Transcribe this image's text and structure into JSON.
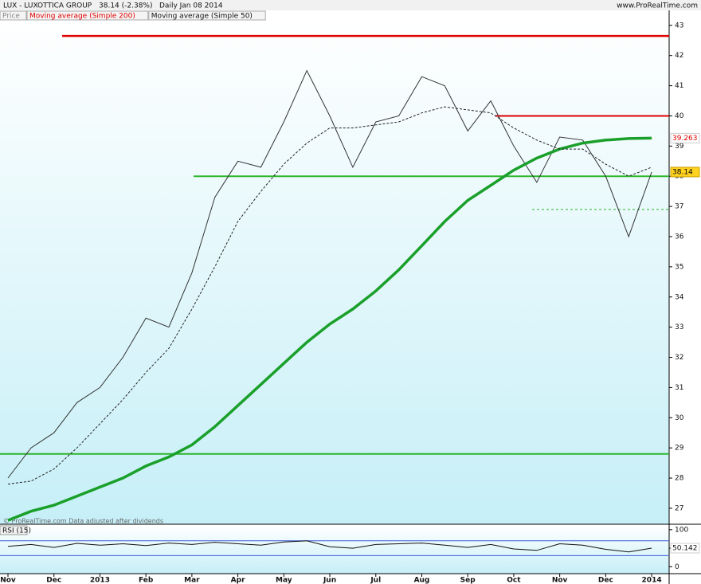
{
  "chart_data": [
    {
      "type": "line",
      "title": "LUX - LUXOTTICA GROUP",
      "subtitle": "38.14 (-2.38%)",
      "period": "Daily  Jan 08 2014",
      "source": "www.ProRealTime.com",
      "note": "© ProRealTime.com Data adjusted after dividends",
      "categories": [
        "Nov",
        null,
        "Dec",
        null,
        "2013",
        null,
        "Feb",
        null,
        "Mar",
        null,
        "Apr",
        null,
        "May",
        null,
        "Jun",
        null,
        "Jul",
        null,
        "Aug",
        null,
        "Sep",
        null,
        "Oct",
        null,
        "Nov",
        null,
        "Dec",
        null,
        "2014"
      ],
      "series": [
        {
          "name": "Price",
          "color": "#333333",
          "values": [
            28.0,
            29.0,
            29.5,
            30.5,
            31.0,
            32.0,
            33.3,
            33.0,
            34.8,
            37.3,
            38.5,
            38.3,
            39.8,
            41.5,
            40.0,
            38.3,
            39.8,
            40.0,
            41.3,
            41.0,
            39.5,
            40.5,
            39.0,
            37.8,
            39.3,
            39.2,
            38.0,
            36.0,
            38.14
          ]
        },
        {
          "name": "Moving average (Simple 200)",
          "color": "#1aa02a",
          "values": [
            26.6,
            26.9,
            27.1,
            27.4,
            27.7,
            28.0,
            28.4,
            28.7,
            29.1,
            29.7,
            30.4,
            31.1,
            31.8,
            32.5,
            33.1,
            33.6,
            34.2,
            34.9,
            35.7,
            36.5,
            37.2,
            37.7,
            38.2,
            38.6,
            38.9,
            39.1,
            39.2,
            39.25,
            39.263
          ]
        },
        {
          "name": "Moving average (Simple 50)",
          "color": "#222222",
          "dash": true,
          "values": [
            27.8,
            27.9,
            28.3,
            29.0,
            29.8,
            30.6,
            31.5,
            32.3,
            33.6,
            35.0,
            36.5,
            37.5,
            38.4,
            39.1,
            39.6,
            39.6,
            39.7,
            39.8,
            40.1,
            40.3,
            40.2,
            40.1,
            39.6,
            39.2,
            38.9,
            38.9,
            38.4,
            38.0,
            38.3
          ]
        }
      ],
      "levels": [
        {
          "value": 42.65,
          "color": "#e00000"
        },
        {
          "value": 40.0,
          "color": "#e00000"
        },
        {
          "value": 38.0,
          "color": "#2db52d"
        },
        {
          "value": 28.8,
          "color": "#2db52d"
        },
        {
          "value": 36.9,
          "color": "#2db52d"
        }
      ],
      "last_labels": [
        {
          "value": 39.263,
          "color": "#e00000"
        },
        {
          "value": 38.14,
          "color": "#000000"
        }
      ],
      "ylim": [
        26.47,
        43.18
      ],
      "yticks": [
        27,
        28,
        29,
        30,
        31,
        32,
        33,
        34,
        35,
        36,
        37,
        38,
        39,
        40,
        41,
        42,
        43
      ]
    },
    {
      "type": "line",
      "title": "RSI (15)",
      "series": [
        {
          "name": "RSI",
          "color": "#111111",
          "values": [
            55,
            60,
            52,
            63,
            58,
            62,
            57,
            64,
            60,
            66,
            62,
            58,
            67,
            70,
            54,
            50,
            60,
            62,
            64,
            58,
            52,
            60,
            48,
            44,
            62,
            58,
            47,
            40,
            50.142
          ]
        }
      ],
      "levels": [
        {
          "value": 70,
          "color": "#3b5bdb"
        },
        {
          "value": 30,
          "color": "#3b5bdb"
        }
      ],
      "ylim": [
        -18.75,
        110.4
      ],
      "yticks": [
        0,
        50,
        100
      ]
    }
  ]
}
